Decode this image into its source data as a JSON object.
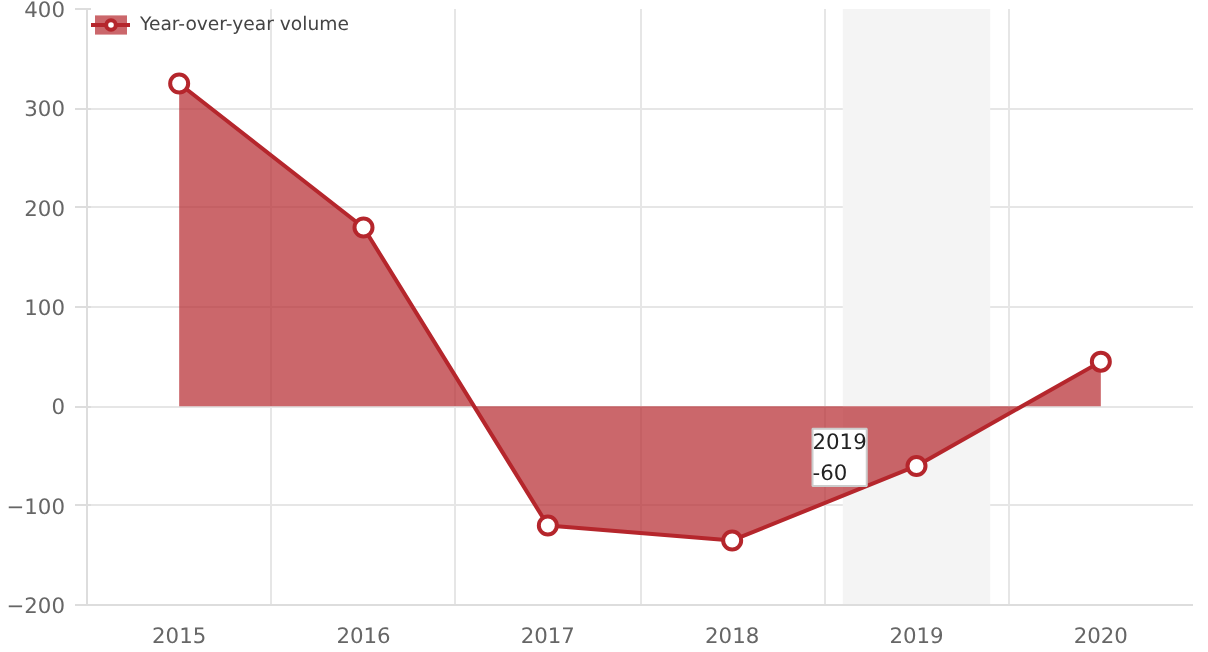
{
  "chart_data": {
    "type": "area",
    "categories": [
      "2015",
      "2016",
      "2017",
      "2018",
      "2019",
      "2020"
    ],
    "series": [
      {
        "name": "Year-over-year volume",
        "color": "#b5262c",
        "values": [
          325,
          180,
          -120,
          -135,
          -60,
          45
        ]
      }
    ],
    "ylim": [
      -200,
      400
    ],
    "yticks": [
      -200,
      -100,
      0,
      100,
      200,
      300,
      400
    ],
    "grid": true,
    "legend": "top left",
    "marker": "circle",
    "bands": [
      {
        "axis": "x",
        "from": "2019",
        "to": "2019",
        "color": "#f4f4f4"
      }
    ],
    "annotations": [
      {
        "text": "2019\n-60",
        "x": "2019",
        "y": -60
      }
    ]
  }
}
